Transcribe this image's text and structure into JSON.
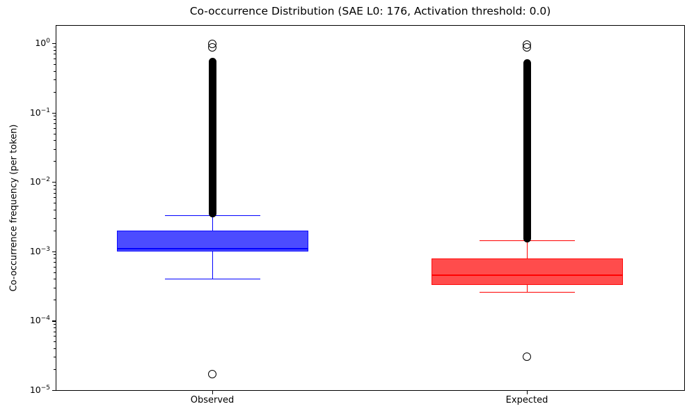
{
  "chart_data": {
    "type": "box",
    "title": "Co-occurrence Distribution (SAE L0: 176, Activation threshold: 0.0)",
    "xlabel": "",
    "ylabel": "Co-occurrence frequency (per token)",
    "y_scale": "log",
    "ylim": [
      1e-05,
      1.8
    ],
    "grid": false,
    "legend": false,
    "y_ticks_exponents": [
      0,
      -1,
      -2,
      -3,
      -4,
      -5
    ],
    "categories": [
      "Observed",
      "Expected"
    ],
    "series": [
      {
        "name": "Observed",
        "color": "#0000ff",
        "fill_opacity": 0.7,
        "q1": 0.001,
        "median": 0.0011,
        "q3": 0.002,
        "whisker_low": 0.0004,
        "whisker_high": 0.0033,
        "outliers_low": [
          1.7e-05
        ],
        "outlier_column_range": [
          0.0033,
          0.62
        ],
        "outliers_top": [
          0.97,
          0.88
        ]
      },
      {
        "name": "Expected",
        "color": "#ff0000",
        "fill_opacity": 0.7,
        "q1": 0.00033,
        "median": 0.00045,
        "q3": 0.00079,
        "whisker_low": 0.00026,
        "whisker_high": 0.00144,
        "outliers_low": [
          3e-05
        ],
        "outlier_column_range": [
          0.00144,
          0.59
        ],
        "outliers_top": [
          0.95,
          0.87
        ]
      }
    ]
  }
}
